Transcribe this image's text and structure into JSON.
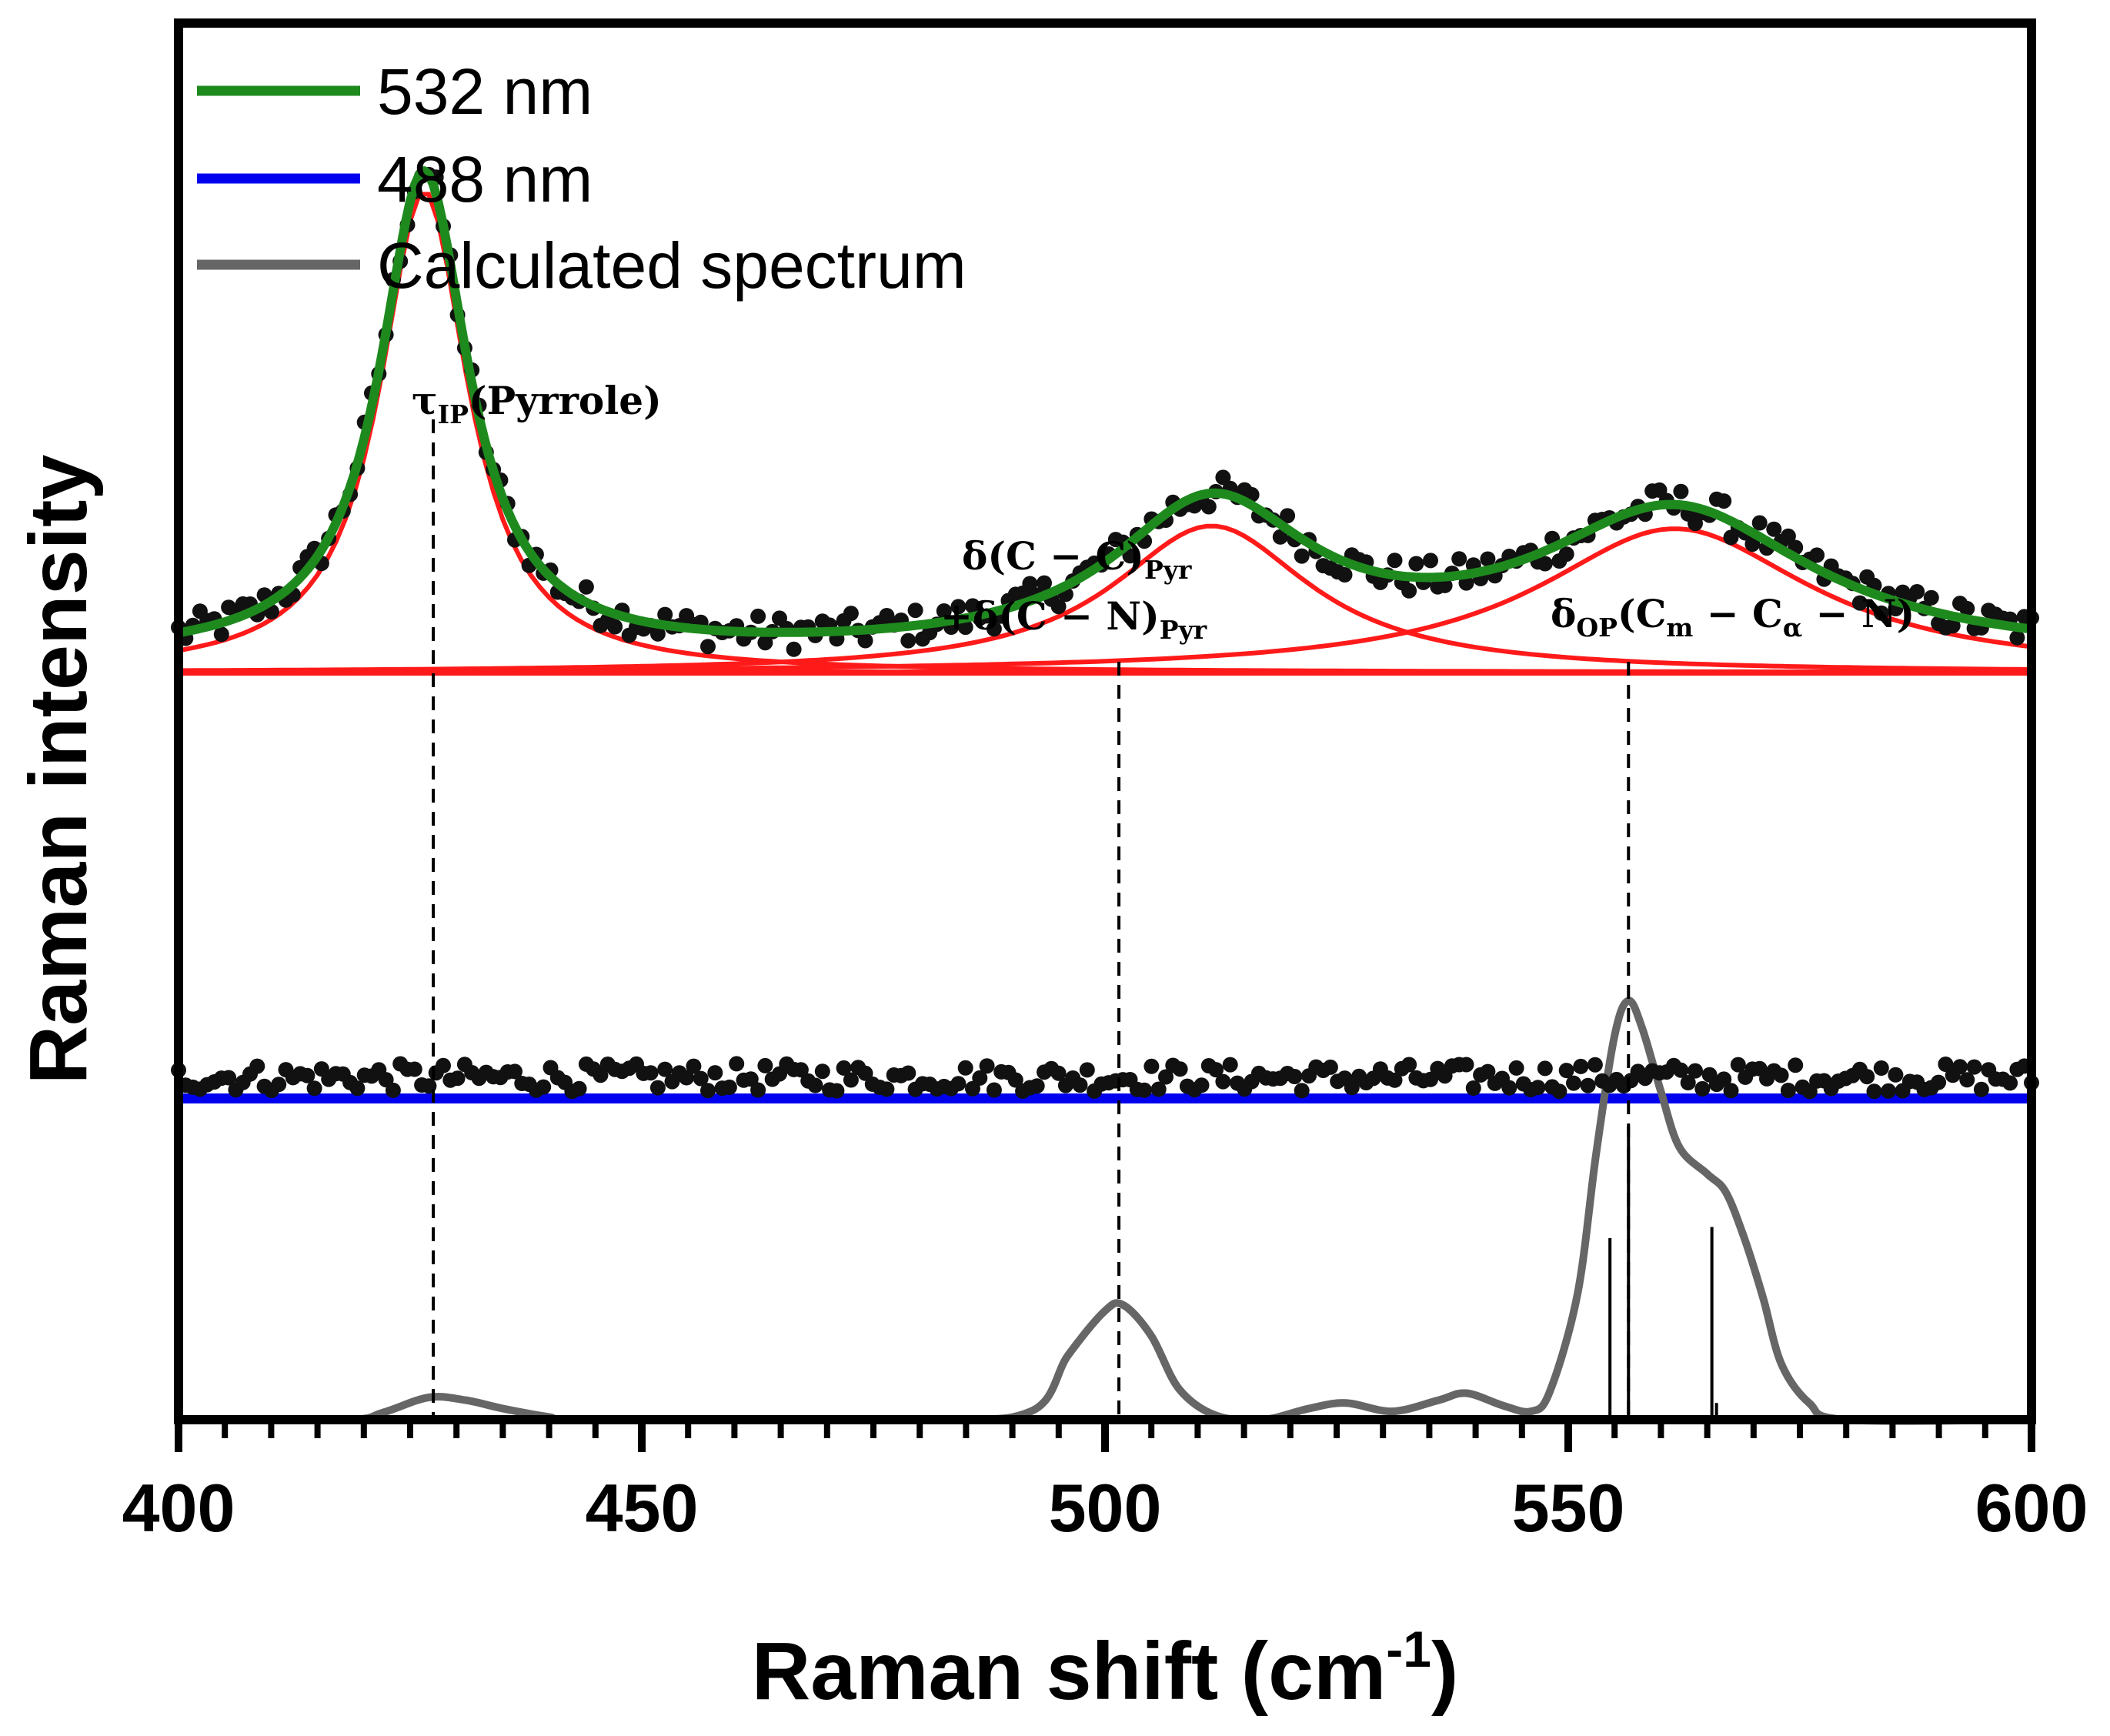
{
  "chart_data": {
    "type": "line",
    "title": "",
    "xlabel": "Raman shift (cm",
    "xlabel_sup": "-1",
    "xlabel_close": ")",
    "ylabel": "Raman intensity",
    "xlim": [
      400,
      600
    ],
    "ylim": [
      0,
      1
    ],
    "grid": false,
    "legend_position": "top-left",
    "x_ticks": [
      400,
      450,
      500,
      550,
      600
    ],
    "x_minor_step": 5,
    "y_tick_labels_shown": false,
    "series": [
      {
        "name": "532 nm",
        "role": "fit",
        "color": "#1e8a1e",
        "baseline": 0.545,
        "peaks": [
          {
            "center": 426.5,
            "height": 0.345,
            "width": 5.8
          },
          {
            "center": 511.5,
            "height": 0.105,
            "width": 13
          },
          {
            "center": 561.5,
            "height": 0.103,
            "width": 18
          }
        ]
      },
      {
        "name": "488 nm",
        "role": "baseline",
        "color": "#0000ee",
        "value": 0.23
      },
      {
        "name": "Calculated spectrum",
        "role": "simulation",
        "color": "#666666",
        "x": [
          400,
          418,
          422,
          427,
          431,
          435,
          440,
          444,
          480,
          492,
          496,
          500,
          502,
          505,
          508,
          512,
          517,
          522,
          526,
          531,
          536,
          539,
          543,
          546,
          548,
          551,
          553,
          555,
          556.5,
          558,
          560,
          562,
          565,
          567,
          569,
          571,
          573,
          576,
          580,
          600
        ],
        "y": [
          0,
          0,
          0.005,
          0.016,
          0.014,
          0.008,
          0.002,
          0,
          0,
          0.006,
          0.046,
          0.078,
          0.082,
          0.06,
          0.022,
          0.003,
          0,
          0.008,
          0.012,
          0.006,
          0.014,
          0.019,
          0.01,
          0.006,
          0.02,
          0.09,
          0.19,
          0.275,
          0.3,
          0.28,
          0.235,
          0.195,
          0.176,
          0.163,
          0.13,
          0.088,
          0.04,
          0.012,
          0,
          0
        ]
      }
    ],
    "measured_points": [
      {
        "name": "532 nm data",
        "color": "#111111",
        "follows": "532 nm",
        "point_count": 260
      },
      {
        "name": "488 nm data",
        "color": "#111111",
        "around": 0.245,
        "point_count": 260
      }
    ],
    "fit_components_color": "#ff1a1a",
    "stick_spectrum": [
      {
        "x": 554.5,
        "height": 0.13
      },
      {
        "x": 556.5,
        "height": 0.21
      },
      {
        "x": 565.5,
        "height": 0.138
      },
      {
        "x": 566,
        "height": 0.012
      }
    ],
    "annotations": [
      {
        "x": 427.5,
        "main": "τ",
        "sub": "IP",
        "rest": "(Pyrrole)"
      },
      {
        "x": 501.5,
        "line1": "δ(C − C)",
        "line1_sub": "Pyr",
        "line2": "+δ(C − N)",
        "line2_sub": "Pyr"
      },
      {
        "x": 556.5,
        "main": "δ",
        "sub": "OP",
        "rest_parts": [
          "(C",
          "m",
          " − C",
          "α",
          " − N)"
        ]
      }
    ]
  }
}
